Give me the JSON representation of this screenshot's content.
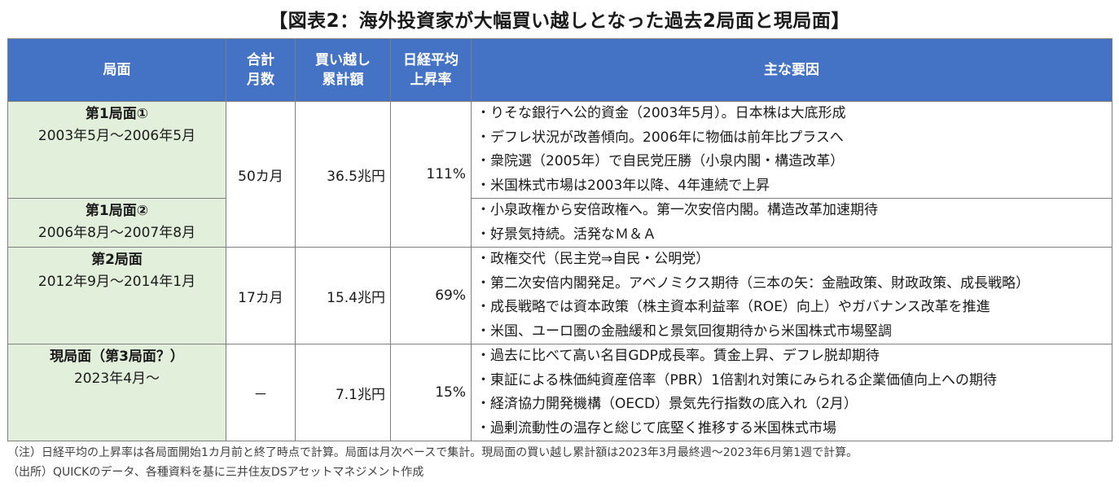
{
  "title": "【図表2：海外投資家が大幅買い越しとなった過去2局面と現局面】",
  "headers": {
    "phase": "局面",
    "months_1": "合計",
    "months_2": "月数",
    "amount_1": "買い越し",
    "amount_2": "累計額",
    "rise_1": "日経平均",
    "rise_2": "上昇率",
    "factors": "主な要因"
  },
  "rows": [
    {
      "phase_name": "第1局面①",
      "period": "2003年5月～2006年5月",
      "months": "50カ月",
      "amount": "36.5兆円",
      "rise": "111%",
      "factors": [
        "・りそな銀行へ公的資金（2003年5月）。日本株は大底形成",
        "・デフレ状況が改善傾向。2006年に物価は前年比プラスへ",
        "・衆院選（2005年）で自民党圧勝（小泉内閣・構造改革）",
        "・米国株式市場は2003年以降、4年連続で上昇"
      ]
    },
    {
      "phase_name": "第1局面②",
      "period": "2006年8月～2007年8月",
      "factors": [
        "・小泉政権から安倍政権へ。第一次安倍内閣。構造改革加速期待",
        "・好景気持続。活発なＭ＆Ａ"
      ]
    },
    {
      "phase_name": "第2局面",
      "period": "2012年9月～2014年1月",
      "months": "17カ月",
      "amount": "15.4兆円",
      "rise": "69%",
      "factors": [
        "・政権交代（民主党⇒自民・公明党）",
        "・第二次安倍内閣発足。アベノミクス期待（三本の矢：金融政策、財政政策、成長戦略）",
        "・成長戦略では資本政策（株主資本利益率（ROE）向上）やガバナンス改革を推進",
        "・米国、ユーロ圏の金融緩和と景気回復期待から米国株式市場堅調"
      ]
    },
    {
      "phase_name": "現局面（第3局面？）",
      "period": "2023年4月～",
      "months": "－",
      "amount": "7.1兆円",
      "rise": "15%",
      "factors": [
        "・過去に比べて高い名目GDP成長率。賃金上昇、デフレ脱却期待",
        "・東証による株価純資産倍率（PBR）1倍割れ対策にみられる企業価値向上への期待",
        "・経済協力開発機構（OECD）景気先行指数の底入れ（2月）",
        "・過剰流動性の温存と総じて底堅く推移する米国株式市場"
      ]
    }
  ],
  "notes": [
    "（注）日経平均の上昇率は各局面開始1カ月前と終了時点で計算。局面は月次ベースで集計。現局面の買い越し累計額は2023年3月最終週～2023年6月第1週で計算。",
    "（出所）QUICKのデータ、各種資料を基に三井住友DSアセットマネジメント作成"
  ]
}
